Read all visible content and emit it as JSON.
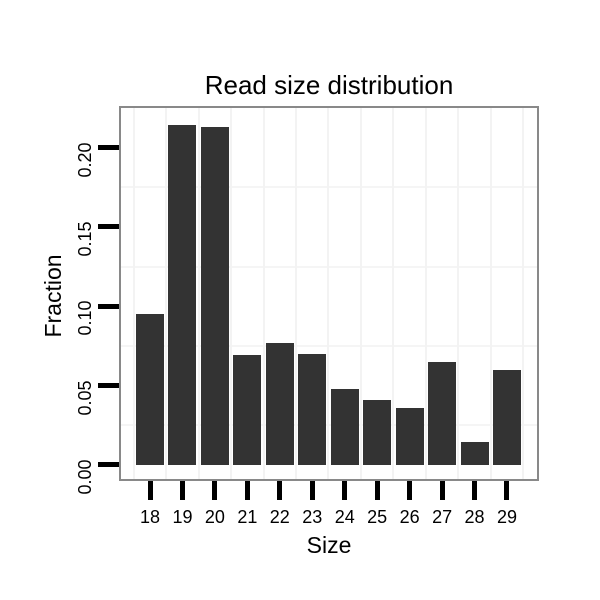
{
  "chart_data": {
    "type": "bar",
    "title": "Read size distribution",
    "xlabel": "Size",
    "ylabel": "Fraction",
    "categories": [
      "18",
      "19",
      "20",
      "21",
      "22",
      "23",
      "24",
      "25",
      "26",
      "27",
      "28",
      "29"
    ],
    "values": [
      0.095,
      0.214,
      0.213,
      0.069,
      0.077,
      0.07,
      0.048,
      0.041,
      0.036,
      0.065,
      0.0145,
      0.06
    ],
    "ytick_values": [
      0.0,
      0.05,
      0.1,
      0.15,
      0.2
    ],
    "ytick_labels": [
      "0.00",
      "0.05",
      "0.10",
      "0.15",
      "0.20"
    ],
    "minor_gridlines_y": [
      0.025,
      0.075,
      0.125,
      0.175
    ],
    "ylim": [
      -0.0089,
      0.2249
    ],
    "grid": "minor horizontal lines between ticks; vertical lines at category boundaries",
    "legend": "none",
    "colors": {
      "bar": "#333333",
      "panel_border": "#898989",
      "h_grid": "#f5f5f5",
      "v_grid": "#f3f3f3",
      "tick": "#000000",
      "text": "#000000",
      "background": "#ffffff"
    }
  }
}
